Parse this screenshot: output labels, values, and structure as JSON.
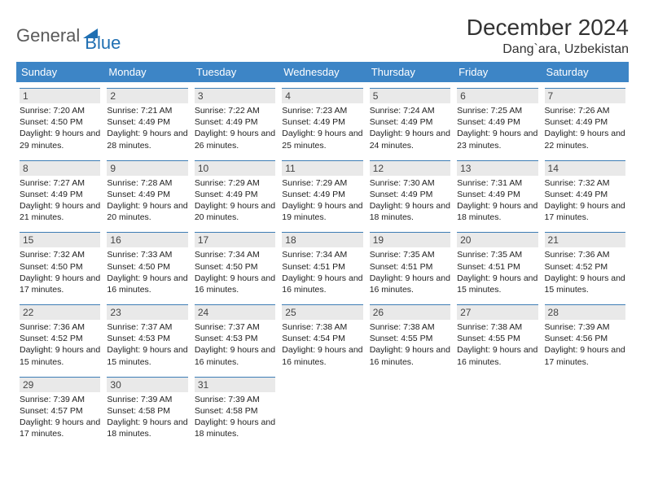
{
  "brand": {
    "part1": "General",
    "part2": "Blue"
  },
  "title": "December 2024",
  "location": "Dang`ara, Uzbekistan",
  "colors": {
    "header_bg": "#3d85c6",
    "daynum_bg": "#e9e9e9",
    "daynum_border": "#3d7db5",
    "text": "#222222",
    "brand_gray": "#5a5a5a",
    "brand_blue": "#1f6fb2"
  },
  "day_names": [
    "Sunday",
    "Monday",
    "Tuesday",
    "Wednesday",
    "Thursday",
    "Friday",
    "Saturday"
  ],
  "weeks": [
    [
      {
        "n": "1",
        "sunrise": "7:20 AM",
        "sunset": "4:50 PM",
        "dl": "9 hours and 29 minutes."
      },
      {
        "n": "2",
        "sunrise": "7:21 AM",
        "sunset": "4:49 PM",
        "dl": "9 hours and 28 minutes."
      },
      {
        "n": "3",
        "sunrise": "7:22 AM",
        "sunset": "4:49 PM",
        "dl": "9 hours and 26 minutes."
      },
      {
        "n": "4",
        "sunrise": "7:23 AM",
        "sunset": "4:49 PM",
        "dl": "9 hours and 25 minutes."
      },
      {
        "n": "5",
        "sunrise": "7:24 AM",
        "sunset": "4:49 PM",
        "dl": "9 hours and 24 minutes."
      },
      {
        "n": "6",
        "sunrise": "7:25 AM",
        "sunset": "4:49 PM",
        "dl": "9 hours and 23 minutes."
      },
      {
        "n": "7",
        "sunrise": "7:26 AM",
        "sunset": "4:49 PM",
        "dl": "9 hours and 22 minutes."
      }
    ],
    [
      {
        "n": "8",
        "sunrise": "7:27 AM",
        "sunset": "4:49 PM",
        "dl": "9 hours and 21 minutes."
      },
      {
        "n": "9",
        "sunrise": "7:28 AM",
        "sunset": "4:49 PM",
        "dl": "9 hours and 20 minutes."
      },
      {
        "n": "10",
        "sunrise": "7:29 AM",
        "sunset": "4:49 PM",
        "dl": "9 hours and 20 minutes."
      },
      {
        "n": "11",
        "sunrise": "7:29 AM",
        "sunset": "4:49 PM",
        "dl": "9 hours and 19 minutes."
      },
      {
        "n": "12",
        "sunrise": "7:30 AM",
        "sunset": "4:49 PM",
        "dl": "9 hours and 18 minutes."
      },
      {
        "n": "13",
        "sunrise": "7:31 AM",
        "sunset": "4:49 PM",
        "dl": "9 hours and 18 minutes."
      },
      {
        "n": "14",
        "sunrise": "7:32 AM",
        "sunset": "4:49 PM",
        "dl": "9 hours and 17 minutes."
      }
    ],
    [
      {
        "n": "15",
        "sunrise": "7:32 AM",
        "sunset": "4:50 PM",
        "dl": "9 hours and 17 minutes."
      },
      {
        "n": "16",
        "sunrise": "7:33 AM",
        "sunset": "4:50 PM",
        "dl": "9 hours and 16 minutes."
      },
      {
        "n": "17",
        "sunrise": "7:34 AM",
        "sunset": "4:50 PM",
        "dl": "9 hours and 16 minutes."
      },
      {
        "n": "18",
        "sunrise": "7:34 AM",
        "sunset": "4:51 PM",
        "dl": "9 hours and 16 minutes."
      },
      {
        "n": "19",
        "sunrise": "7:35 AM",
        "sunset": "4:51 PM",
        "dl": "9 hours and 16 minutes."
      },
      {
        "n": "20",
        "sunrise": "7:35 AM",
        "sunset": "4:51 PM",
        "dl": "9 hours and 15 minutes."
      },
      {
        "n": "21",
        "sunrise": "7:36 AM",
        "sunset": "4:52 PM",
        "dl": "9 hours and 15 minutes."
      }
    ],
    [
      {
        "n": "22",
        "sunrise": "7:36 AM",
        "sunset": "4:52 PM",
        "dl": "9 hours and 15 minutes."
      },
      {
        "n": "23",
        "sunrise": "7:37 AM",
        "sunset": "4:53 PM",
        "dl": "9 hours and 15 minutes."
      },
      {
        "n": "24",
        "sunrise": "7:37 AM",
        "sunset": "4:53 PM",
        "dl": "9 hours and 16 minutes."
      },
      {
        "n": "25",
        "sunrise": "7:38 AM",
        "sunset": "4:54 PM",
        "dl": "9 hours and 16 minutes."
      },
      {
        "n": "26",
        "sunrise": "7:38 AM",
        "sunset": "4:55 PM",
        "dl": "9 hours and 16 minutes."
      },
      {
        "n": "27",
        "sunrise": "7:38 AM",
        "sunset": "4:55 PM",
        "dl": "9 hours and 16 minutes."
      },
      {
        "n": "28",
        "sunrise": "7:39 AM",
        "sunset": "4:56 PM",
        "dl": "9 hours and 17 minutes."
      }
    ],
    [
      {
        "n": "29",
        "sunrise": "7:39 AM",
        "sunset": "4:57 PM",
        "dl": "9 hours and 17 minutes."
      },
      {
        "n": "30",
        "sunrise": "7:39 AM",
        "sunset": "4:58 PM",
        "dl": "9 hours and 18 minutes."
      },
      {
        "n": "31",
        "sunrise": "7:39 AM",
        "sunset": "4:58 PM",
        "dl": "9 hours and 18 minutes."
      },
      {
        "empty": true
      },
      {
        "empty": true
      },
      {
        "empty": true
      },
      {
        "empty": true
      }
    ]
  ],
  "labels": {
    "sunrise": "Sunrise:",
    "sunset": "Sunset:",
    "daylight": "Daylight:"
  }
}
